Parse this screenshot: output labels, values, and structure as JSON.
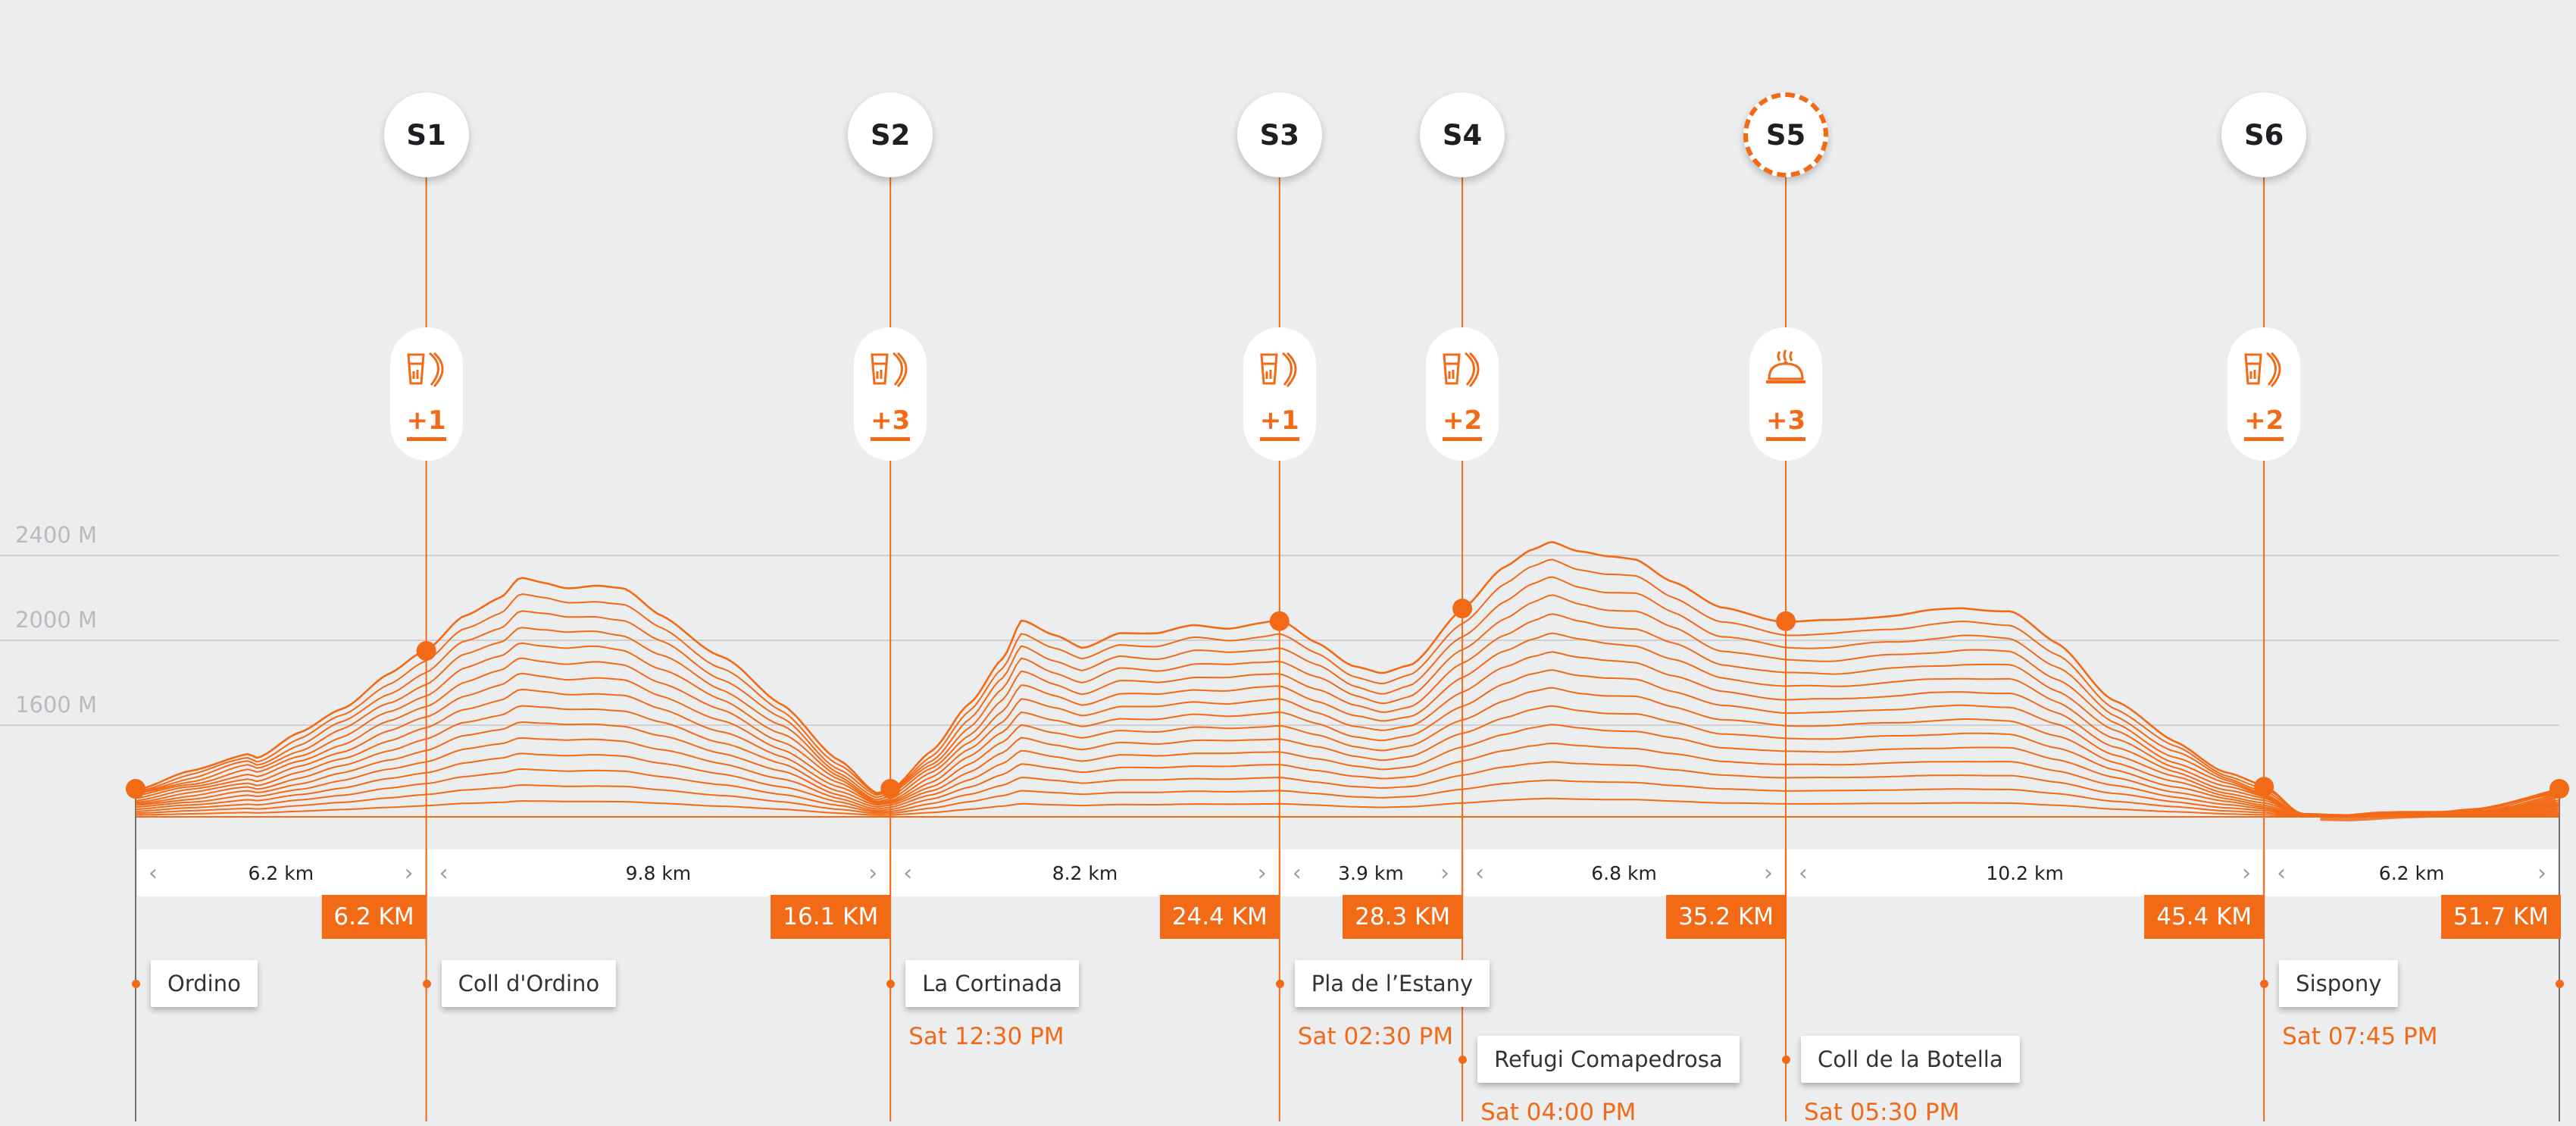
{
  "chart_data": {
    "type": "area",
    "title": "",
    "xlabel": "",
    "ylabel": "",
    "distance_km_range": [
      0,
      51.7
    ],
    "elevation_ticks": [
      {
        "value": 2400,
        "label": "2400 M"
      },
      {
        "value": 2000,
        "label": "2000 M"
      },
      {
        "value": 1600,
        "label": "1600 M"
      }
    ],
    "elevation_profile": [
      {
        "km": 0,
        "ele": 1300
      },
      {
        "km": 1.2,
        "ele": 1380
      },
      {
        "km": 2.4,
        "ele": 1470
      },
      {
        "km": 2.6,
        "ele": 1450
      },
      {
        "km": 3.5,
        "ele": 1560
      },
      {
        "km": 4.4,
        "ele": 1680
      },
      {
        "km": 5.4,
        "ele": 1840
      },
      {
        "km": 6.2,
        "ele": 1950
      },
      {
        "km": 7.0,
        "ele": 2120
      },
      {
        "km": 7.8,
        "ele": 2200
      },
      {
        "km": 8.2,
        "ele": 2290
      },
      {
        "km": 8.7,
        "ele": 2270
      },
      {
        "km": 9.2,
        "ele": 2250
      },
      {
        "km": 9.8,
        "ele": 2260
      },
      {
        "km": 10.4,
        "ele": 2240
      },
      {
        "km": 11.2,
        "ele": 2120
      },
      {
        "km": 12.5,
        "ele": 1920
      },
      {
        "km": 13.8,
        "ele": 1700
      },
      {
        "km": 15.0,
        "ele": 1430
      },
      {
        "km": 15.8,
        "ele": 1280
      },
      {
        "km": 16.1,
        "ele": 1300
      },
      {
        "km": 17.0,
        "ele": 1480
      },
      {
        "km": 17.8,
        "ele": 1700
      },
      {
        "km": 18.5,
        "ele": 1920
      },
      {
        "km": 18.9,
        "ele": 2100
      },
      {
        "km": 19.6,
        "ele": 2020
      },
      {
        "km": 20.2,
        "ele": 1960
      },
      {
        "km": 21.0,
        "ele": 2040
      },
      {
        "km": 21.8,
        "ele": 2030
      },
      {
        "km": 22.6,
        "ele": 2070
      },
      {
        "km": 23.3,
        "ele": 2060
      },
      {
        "km": 24.0,
        "ele": 2080
      },
      {
        "km": 24.4,
        "ele": 2090
      },
      {
        "km": 25.2,
        "ele": 1990
      },
      {
        "km": 26.0,
        "ele": 1880
      },
      {
        "km": 26.6,
        "ele": 1840
      },
      {
        "km": 27.2,
        "ele": 1880
      },
      {
        "km": 28.3,
        "ele": 2150
      },
      {
        "km": 29.2,
        "ele": 2340
      },
      {
        "km": 29.8,
        "ele": 2430
      },
      {
        "km": 30.2,
        "ele": 2470
      },
      {
        "km": 30.8,
        "ele": 2420
      },
      {
        "km": 31.4,
        "ele": 2390
      },
      {
        "km": 32.0,
        "ele": 2380
      },
      {
        "km": 32.8,
        "ele": 2280
      },
      {
        "km": 33.8,
        "ele": 2150
      },
      {
        "km": 35.2,
        "ele": 2090
      },
      {
        "km": 36.2,
        "ele": 2090
      },
      {
        "km": 37.5,
        "ele": 2120
      },
      {
        "km": 38.4,
        "ele": 2140
      },
      {
        "km": 39.0,
        "ele": 2150
      },
      {
        "km": 40.0,
        "ele": 2140
      },
      {
        "km": 41.0,
        "ele": 1980
      },
      {
        "km": 42.2,
        "ele": 1720
      },
      {
        "km": 43.5,
        "ele": 1520
      },
      {
        "km": 44.6,
        "ele": 1380
      },
      {
        "km": 45.4,
        "ele": 1310
      },
      {
        "km": 46.2,
        "ele": 1180
      },
      {
        "km": 47.2,
        "ele": 1175
      },
      {
        "km": 48.5,
        "ele": 1190
      },
      {
        "km": 50.0,
        "ele": 1200
      },
      {
        "km": 51.7,
        "ele": 1300
      }
    ],
    "contour_lines": 15,
    "grid": true
  },
  "stages": [
    {
      "label": "S1",
      "km": 6.2,
      "dashed": false,
      "supply": "drink-and-snack-icon",
      "count": "+1"
    },
    {
      "label": "S2",
      "km": 16.1,
      "dashed": false,
      "supply": "drink-and-snack-icon",
      "count": "+3"
    },
    {
      "label": "S3",
      "km": 24.4,
      "dashed": false,
      "supply": "drink-and-snack-icon",
      "count": "+1"
    },
    {
      "label": "S4",
      "km": 28.3,
      "dashed": false,
      "supply": "drink-and-snack-icon",
      "count": "+2"
    },
    {
      "label": "S5",
      "km": 35.2,
      "dashed": true,
      "supply": "hot-meal-icon",
      "count": "+3"
    },
    {
      "label": "S6",
      "km": 45.4,
      "dashed": false,
      "supply": "drink-and-snack-icon",
      "count": "+2"
    }
  ],
  "segments": [
    {
      "from_km": 0,
      "to_km": 6.2,
      "distance": "6.2 km"
    },
    {
      "from_km": 6.2,
      "to_km": 16.1,
      "distance": "9.8 km"
    },
    {
      "from_km": 16.1,
      "to_km": 24.4,
      "distance": "8.2 km"
    },
    {
      "from_km": 24.4,
      "to_km": 28.3,
      "distance": "3.9 km"
    },
    {
      "from_km": 28.3,
      "to_km": 35.2,
      "distance": "6.8 km"
    },
    {
      "from_km": 35.2,
      "to_km": 45.4,
      "distance": "10.2 km"
    },
    {
      "from_km": 45.4,
      "to_km": 51.7,
      "distance": "6.2 km"
    }
  ],
  "cumulative_markers": [
    {
      "km": 6.2,
      "label": "6.2 KM"
    },
    {
      "km": 16.1,
      "label": "16.1 KM"
    },
    {
      "km": 24.4,
      "label": "24.4 KM"
    },
    {
      "km": 28.3,
      "label": "28.3 KM"
    },
    {
      "km": 35.2,
      "label": "35.2 KM"
    },
    {
      "km": 45.4,
      "label": "45.4 KM"
    },
    {
      "km": 51.7,
      "label": "51.7 KM"
    }
  ],
  "locations": [
    {
      "km": 0,
      "name": "Ordino",
      "time": "",
      "row": 1
    },
    {
      "km": 6.2,
      "name": "Coll d'Ordino",
      "time": "",
      "row": 1
    },
    {
      "km": 16.1,
      "name": "La Cortinada",
      "time": "Sat 12:30 PM",
      "row": 1
    },
    {
      "km": 24.4,
      "name": "Pla de l’Estany",
      "time": "Sat 02:30 PM",
      "row": 1
    },
    {
      "km": 28.3,
      "name": "Refugi Comapedrosa",
      "time": "Sat 04:00 PM",
      "row": 2
    },
    {
      "km": 35.2,
      "name": "Coll de la Botella",
      "time": "Sat 05:30 PM",
      "row": 2
    },
    {
      "km": 45.4,
      "name": "Sispony",
      "time": "Sat 07:45 PM",
      "row": 1
    }
  ],
  "colors": {
    "accent": "#f26a16",
    "background": "#ecedef",
    "gridline": "#cfd0d3",
    "axis_label": "#b8babd"
  }
}
